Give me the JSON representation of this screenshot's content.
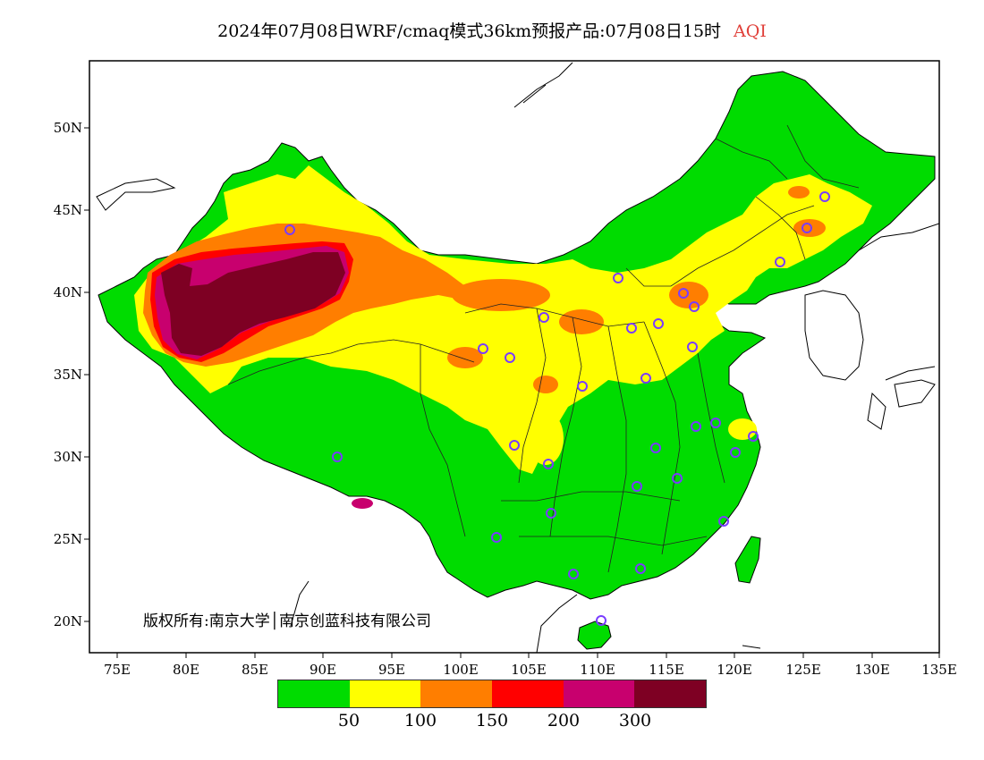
{
  "title": {
    "main": "2024年07月08日WRF/cmaq模式36km预报产品:07月08日15时",
    "variable": "AQI"
  },
  "axes": {
    "lat_ticks": [
      "50N",
      "45N",
      "40N",
      "35N",
      "30N",
      "25N",
      "20N"
    ],
    "lon_ticks": [
      "75E",
      "80E",
      "85E",
      "90E",
      "95E",
      "100E",
      "105E",
      "110E",
      "115E",
      "120E",
      "125E",
      "130E",
      "135E"
    ]
  },
  "copyright": "版权所有:南京大学│南京创蓝科技有限公司",
  "legend": {
    "colors": [
      "#00dc00",
      "#ffff00",
      "#ff7e00",
      "#ff0000",
      "#c8006e",
      "#7e0023"
    ],
    "labels": [
      "50",
      "100",
      "150",
      "200",
      "300"
    ]
  },
  "colors": {
    "land_background": "#00dc00",
    "station_marker": "#7a3cff"
  }
}
